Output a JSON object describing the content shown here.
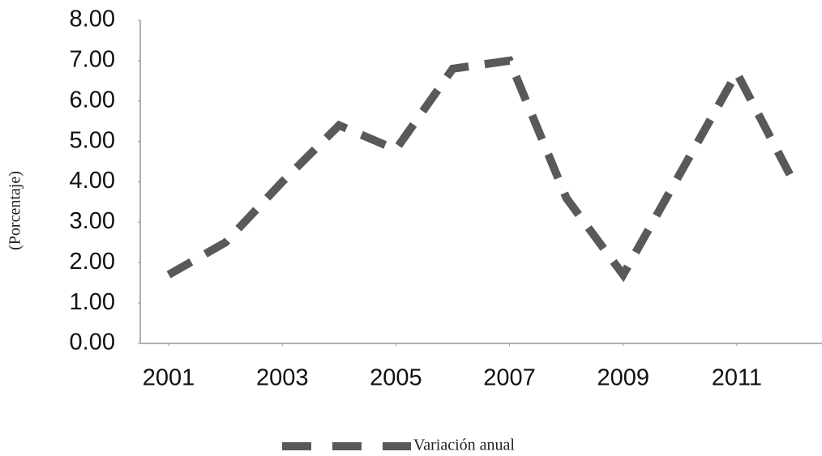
{
  "chart_data": {
    "type": "line",
    "y_label": "(Porcentaje)",
    "x": [
      2001,
      2002,
      2003,
      2004,
      2005,
      2006,
      2007,
      2008,
      2009,
      2010,
      2011,
      2012
    ],
    "xlim": [
      2000.5,
      2012.5
    ],
    "xticks": [
      2001,
      2003,
      2005,
      2007,
      2009,
      2011
    ],
    "ylim": [
      0,
      8
    ],
    "yticks": [
      {
        "value": 0,
        "label": "0.00"
      },
      {
        "value": 1,
        "label": "1.00"
      },
      {
        "value": 2,
        "label": "2.00"
      },
      {
        "value": 3,
        "label": "3.00"
      },
      {
        "value": 4,
        "label": "4.00"
      },
      {
        "value": 5,
        "label": "5.00"
      },
      {
        "value": 6,
        "label": "6.00"
      },
      {
        "value": 7,
        "label": "7.00"
      },
      {
        "value": 8,
        "label": "8.00"
      }
    ],
    "grid": false,
    "series": [
      {
        "name": "Variación anual",
        "color": "#595959",
        "dashed": true,
        "values": [
          1.7,
          2.5,
          4.0,
          5.4,
          4.8,
          6.8,
          7.0,
          3.6,
          1.7,
          4.2,
          6.7,
          4.0
        ]
      }
    ]
  }
}
